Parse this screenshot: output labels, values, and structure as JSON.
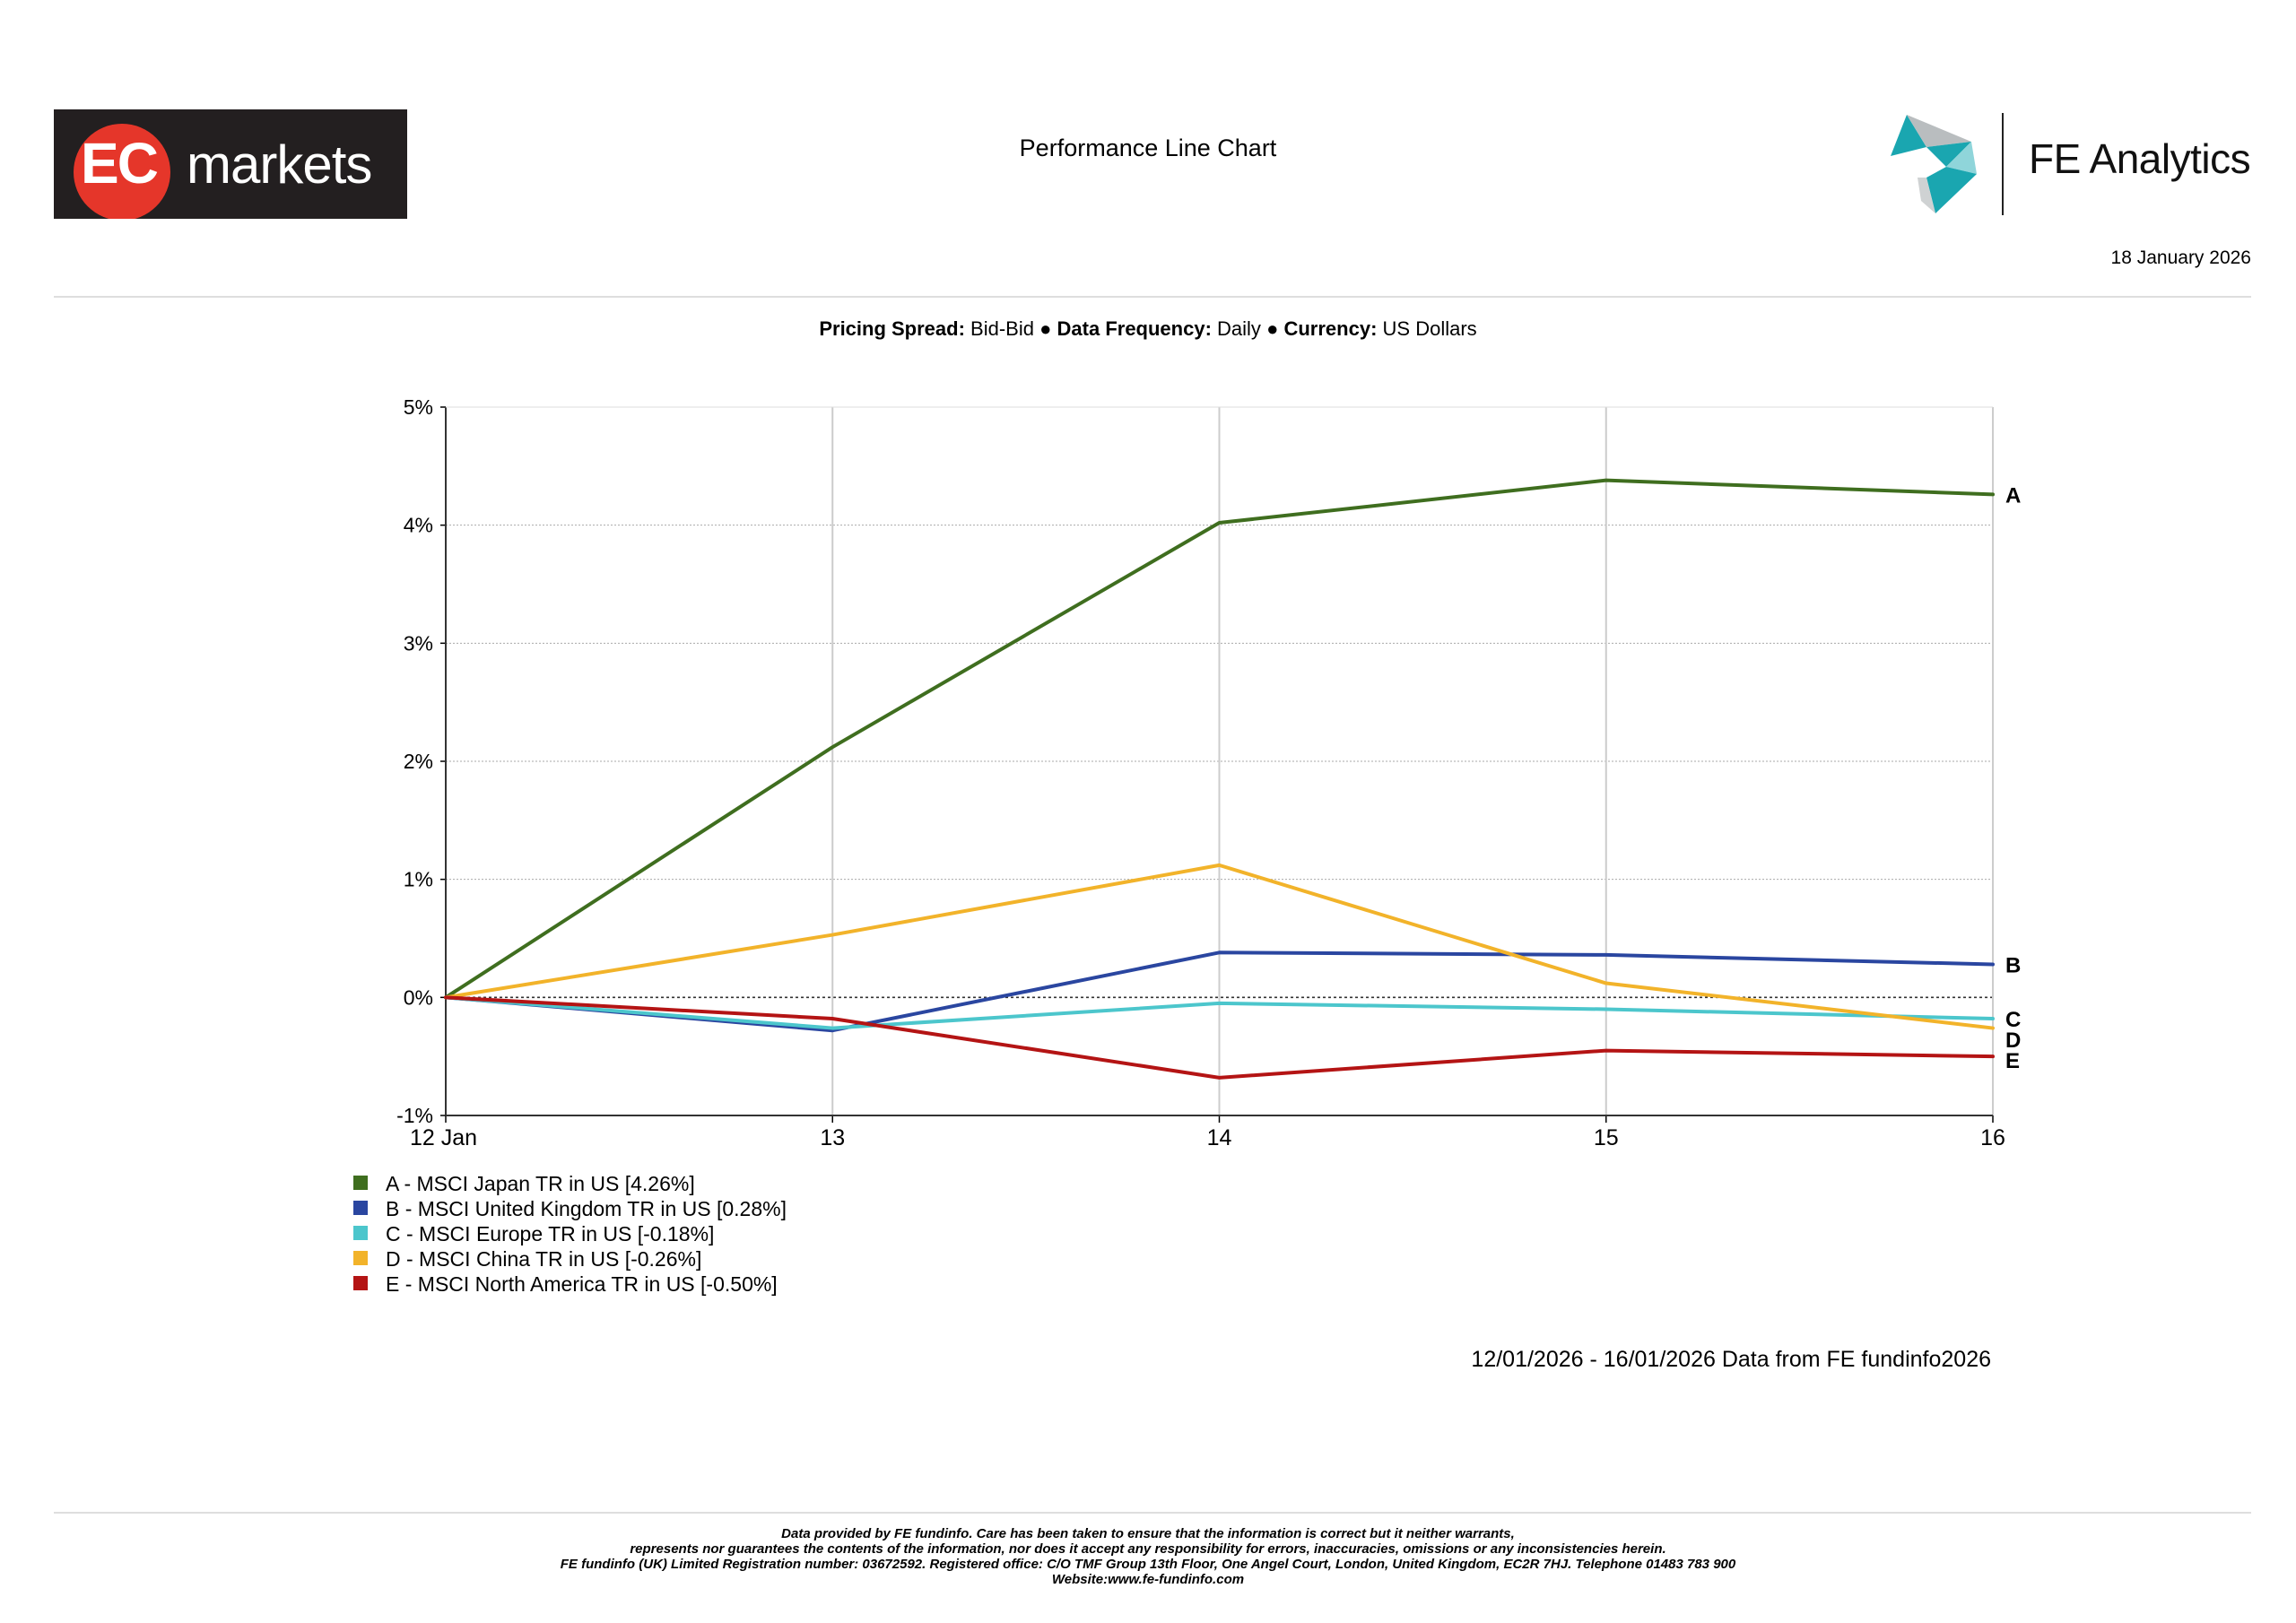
{
  "header": {
    "left_logo": {
      "text_ec": "EC",
      "text_markets": "markets",
      "color": "#e5362a"
    },
    "title": "Performance Line Chart",
    "right_logo": {
      "name": "FE Analytics",
      "color": "#1aa6b0"
    },
    "date": "18 January 2026"
  },
  "settings": {
    "spread_label": "Pricing Spread:",
    "spread_value": "Bid-Bid",
    "separator": "●",
    "frequency_label": "Data Frequency:",
    "frequency_value": "Daily",
    "currency_label": "Currency:",
    "currency_value": "US Dollars"
  },
  "chart_data": {
    "type": "line",
    "title": "Performance Line Chart",
    "x": [
      "12 Jan",
      "13",
      "14",
      "15",
      "16"
    ],
    "ylim": [
      -1,
      5
    ],
    "yticks": [
      -1,
      0,
      1,
      2,
      3,
      4,
      5
    ],
    "ytick_labels": [
      "-1%",
      "0%",
      "1%",
      "2%",
      "3%",
      "4%",
      "5%"
    ],
    "grid": true,
    "series": [
      {
        "key": "A",
        "name": "MSCI Japan TR in US",
        "final": "4.26%",
        "color": "#3f6e1f",
        "values": [
          0,
          2.12,
          4.02,
          4.38,
          4.26
        ]
      },
      {
        "key": "B",
        "name": "MSCI United Kingdom TR in US",
        "final": "0.28%",
        "color": "#2a46a0",
        "values": [
          0,
          -0.28,
          0.38,
          0.36,
          0.28
        ]
      },
      {
        "key": "C",
        "name": "MSCI Europe TR in US",
        "final": "-0.18%",
        "color": "#4cc6cc",
        "values": [
          0,
          -0.26,
          -0.05,
          -0.1,
          -0.18
        ]
      },
      {
        "key": "D",
        "name": "MSCI China TR in US",
        "final": "-0.26%",
        "color": "#f2b32a",
        "values": [
          0,
          0.53,
          1.12,
          0.12,
          -0.26
        ]
      },
      {
        "key": "E",
        "name": "MSCI North America TR in US",
        "final": "-0.50%",
        "color": "#b41414",
        "values": [
          0,
          -0.18,
          -0.68,
          -0.45,
          -0.5
        ]
      }
    ]
  },
  "source_note": "12/01/2026 - 16/01/2026 Data from FE fundinfo2026",
  "disclaimer": {
    "line1": "Data provided by FE fundinfo. Care has been taken to ensure that the information is correct but it neither warrants,",
    "line2": "represents nor guarantees the contents of the information, nor does it accept any responsibility for errors, inaccuracies, omissions or any inconsistencies herein.",
    "line3": "FE fundinfo (UK) Limited Registration number: 03672592. Registered office: C/O TMF Group 13th Floor, One Angel Court, London, United Kingdom, EC2R 7HJ. Telephone 01483 783 900",
    "line4": "Website:www.fe-fundinfo.com"
  }
}
